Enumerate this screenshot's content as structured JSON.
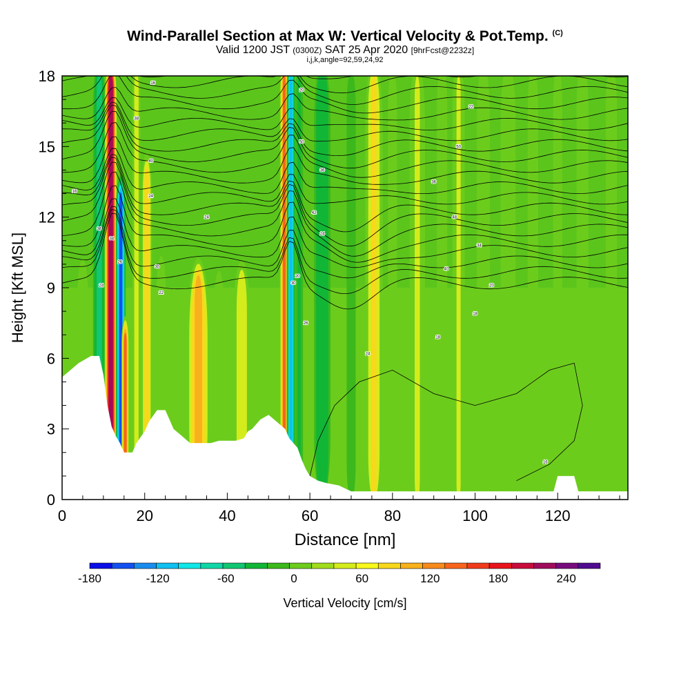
{
  "title": {
    "main": "Wind-Parallel Section at Max W: Vertical Velocity & Pot.Temp.",
    "main_tag": "(C)",
    "sub_a": "Valid 1200 JST",
    "sub_b": "(0300Z)",
    "sub_c": "SAT 25 Apr 2020",
    "sub_d": "[9hrFcst@2232z]",
    "sub3": "i,j,k,angle=92,59,24,92"
  },
  "chart_data": {
    "type": "heatmap",
    "xlabel": "Distance [nm]",
    "ylabel": "Height [Kft MSL]",
    "xlim": [
      0,
      137
    ],
    "ylim": [
      0,
      18
    ],
    "x_ticks": [
      0,
      20,
      40,
      60,
      80,
      100,
      120
    ],
    "y_ticks": [
      0,
      3,
      6,
      9,
      12,
      15,
      18
    ],
    "colorbar": {
      "label": "Vertical Velocity [cm/s]",
      "tick_labels": [
        "-180",
        "-120",
        "-60",
        "0",
        "60",
        "120",
        "180",
        "240"
      ],
      "tick_values": [
        -180,
        -120,
        -60,
        0,
        60,
        120,
        180,
        240
      ],
      "range": [
        -180,
        270
      ],
      "colors": [
        "#0a0fe6",
        "#1450f0",
        "#1a8cf0",
        "#10c0f0",
        "#10e6e6",
        "#10d6a6",
        "#12c672",
        "#12b636",
        "#3cb81c",
        "#6ccc1c",
        "#a0dc1c",
        "#d4ec1c",
        "#f8f81c",
        "#f8d81c",
        "#f8b01c",
        "#f88a1c",
        "#f8641c",
        "#f03c1c",
        "#e8141c",
        "#c80c3c",
        "#a00c5c",
        "#780c7c",
        "#500c90"
      ]
    },
    "terrain_kft": [
      [
        0,
        5.2
      ],
      [
        2,
        5.5
      ],
      [
        4,
        5.8
      ],
      [
        7,
        6.1
      ],
      [
        9,
        6.1
      ],
      [
        10,
        5.3
      ],
      [
        11,
        4
      ],
      [
        12,
        3.1
      ],
      [
        13,
        2.7
      ],
      [
        14,
        2.4
      ],
      [
        15,
        2
      ],
      [
        17,
        2
      ],
      [
        18,
        2.4
      ],
      [
        20,
        2.9
      ],
      [
        21,
        3.3
      ],
      [
        23,
        3.8
      ],
      [
        25,
        3.8
      ],
      [
        26,
        3.4
      ],
      [
        27,
        3
      ],
      [
        29,
        2.7
      ],
      [
        31,
        2.4
      ],
      [
        33,
        2.4
      ],
      [
        36,
        2.4
      ],
      [
        38,
        2.5
      ],
      [
        42,
        2.5
      ],
      [
        44,
        2.6
      ],
      [
        45,
        2.9
      ],
      [
        46,
        3
      ],
      [
        48,
        3.4
      ],
      [
        50,
        3.6
      ],
      [
        52,
        3.3
      ],
      [
        54,
        3
      ],
      [
        55,
        2.6
      ],
      [
        56,
        2.4
      ],
      [
        57,
        2.2
      ],
      [
        58,
        1.7
      ],
      [
        59,
        1.3
      ],
      [
        60,
        1
      ],
      [
        62,
        0.8
      ],
      [
        64,
        0.7
      ],
      [
        67,
        0.6
      ],
      [
        70,
        0.35
      ],
      [
        80,
        0.35
      ],
      [
        119,
        0.35
      ],
      [
        120,
        1
      ],
      [
        124,
        1
      ],
      [
        125,
        0.35
      ],
      [
        137,
        0.35
      ]
    ],
    "vertical_velocity_bands": [
      {
        "x": 2,
        "width": 2.0,
        "w": -8,
        "top": 9
      },
      {
        "x": 5,
        "width": 3.0,
        "w": 20,
        "top": 10
      },
      {
        "x": 9,
        "width": 1.8,
        "w": -70,
        "top": 18
      },
      {
        "x": 11.8,
        "width": 1.6,
        "w": 230,
        "top": 18
      },
      {
        "x": 14.2,
        "width": 1.3,
        "w": -160,
        "top": 13
      },
      {
        "x": 15.3,
        "width": 1.0,
        "w": 150,
        "top": 7
      },
      {
        "x": 18,
        "width": 1.2,
        "w": 60,
        "top": 18
      },
      {
        "x": 20.5,
        "width": 1.5,
        "w": 90,
        "top": 14
      },
      {
        "x": 24,
        "width": 2.0,
        "w": 25,
        "top": 10
      },
      {
        "x": 27,
        "width": 2.0,
        "w": 10,
        "top": 9
      },
      {
        "x": 33,
        "width": 3.2,
        "w": 110,
        "top": 9.5
      },
      {
        "x": 38,
        "width": 3.0,
        "w": 20,
        "top": 9.5
      },
      {
        "x": 43.5,
        "width": 2.6,
        "w": 65,
        "top": 9.5
      },
      {
        "x": 48,
        "width": 2.0,
        "w": 15,
        "top": 9
      },
      {
        "x": 53.8,
        "width": 1.2,
        "w": 140,
        "top": 18
      },
      {
        "x": 55.4,
        "width": 1.1,
        "w": -130,
        "top": 18
      },
      {
        "x": 57.4,
        "width": 1.5,
        "w": -30,
        "top": 18
      },
      {
        "x": 63,
        "width": 2.5,
        "w": -55,
        "top": 18
      },
      {
        "x": 70,
        "width": 2.5,
        "w": -20,
        "top": 18
      },
      {
        "x": 75.5,
        "width": 2.5,
        "w": 75,
        "top": 18
      },
      {
        "x": 80,
        "width": 2.5,
        "w": 20,
        "top": 18
      },
      {
        "x": 86,
        "width": 2.5,
        "w": 45,
        "top": 18
      },
      {
        "x": 92,
        "width": 2.0,
        "w": 30,
        "top": 18
      },
      {
        "x": 96,
        "width": 2.0,
        "w": 45,
        "top": 18
      },
      {
        "x": 102,
        "width": 2.5,
        "w": 30,
        "top": 18
      },
      {
        "x": 108,
        "width": 2.5,
        "w": 40,
        "top": 18
      },
      {
        "x": 114,
        "width": 2.0,
        "w": 30,
        "top": 18
      },
      {
        "x": 120,
        "width": 2.0,
        "w": 25,
        "top": 18
      },
      {
        "x": 126,
        "width": 2.0,
        "w": 40,
        "top": 18
      },
      {
        "x": 133,
        "width": 2.0,
        "w": 35,
        "top": 18
      }
    ],
    "contour_labels": [
      {
        "x": 22,
        "y": 17.7,
        "text": "16"
      },
      {
        "x": 18,
        "y": 16.2,
        "text": "38"
      },
      {
        "x": 21.5,
        "y": 14.4,
        "text": "40"
      },
      {
        "x": 21.5,
        "y": 12.9,
        "text": "24"
      },
      {
        "x": 3,
        "y": 13.1,
        "text": "16"
      },
      {
        "x": 9,
        "y": 11.5,
        "text": "36"
      },
      {
        "x": 12,
        "y": 11.1,
        "text": "34"
      },
      {
        "x": 14,
        "y": 10.1,
        "text": "26"
      },
      {
        "x": 9.5,
        "y": 9.1,
        "text": "24"
      },
      {
        "x": 23,
        "y": 9.9,
        "text": "30"
      },
      {
        "x": 24,
        "y": 8.8,
        "text": "22"
      },
      {
        "x": 35,
        "y": 12.0,
        "text": "24"
      },
      {
        "x": 58,
        "y": 17.4,
        "text": "20"
      },
      {
        "x": 58,
        "y": 15.2,
        "text": "50"
      },
      {
        "x": 63,
        "y": 14.0,
        "text": "36"
      },
      {
        "x": 61,
        "y": 12.2,
        "text": "42"
      },
      {
        "x": 63,
        "y": 11.3,
        "text": "24"
      },
      {
        "x": 57,
        "y": 9.5,
        "text": "20"
      },
      {
        "x": 56,
        "y": 9.2,
        "text": "30"
      },
      {
        "x": 59,
        "y": 7.5,
        "text": "26"
      },
      {
        "x": 74,
        "y": 6.2,
        "text": "24"
      },
      {
        "x": 99,
        "y": 16.7,
        "text": "22"
      },
      {
        "x": 96,
        "y": 15.0,
        "text": "50"
      },
      {
        "x": 90,
        "y": 13.5,
        "text": "36"
      },
      {
        "x": 95,
        "y": 12.0,
        "text": "48"
      },
      {
        "x": 101,
        "y": 10.8,
        "text": "34"
      },
      {
        "x": 93,
        "y": 9.8,
        "text": "40"
      },
      {
        "x": 104,
        "y": 9.1,
        "text": "20"
      },
      {
        "x": 100,
        "y": 7.9,
        "text": "18"
      },
      {
        "x": 91,
        "y": 6.9,
        "text": "18"
      },
      {
        "x": 117,
        "y": 1.6,
        "text": "16"
      }
    ]
  }
}
